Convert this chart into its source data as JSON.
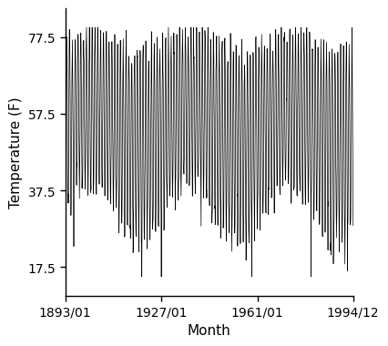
{
  "title": "",
  "xlabel": "Month",
  "ylabel": "Temperature (F)",
  "start_year": 1893,
  "start_month": 1,
  "end_year": 1994,
  "end_month": 12,
  "ylim": [
    10,
    85
  ],
  "yticks": [
    17.5,
    37.5,
    57.5,
    77.5
  ],
  "xtick_labels": [
    "1893/01",
    "1927/01",
    "1961/01",
    "1994/12"
  ],
  "xtick_years": [
    1893,
    1927,
    1961,
    1994
  ],
  "xtick_months": [
    1,
    1,
    1,
    12
  ],
  "mean_temp_annual": 54.0,
  "summer_peak": 77.0,
  "winter_low": 30.0,
  "line_color": "#000000",
  "line_width": 0.5,
  "bg_color": "#ffffff",
  "font_family": "Courier New",
  "font_size_tick": 10,
  "font_size_label": 11
}
